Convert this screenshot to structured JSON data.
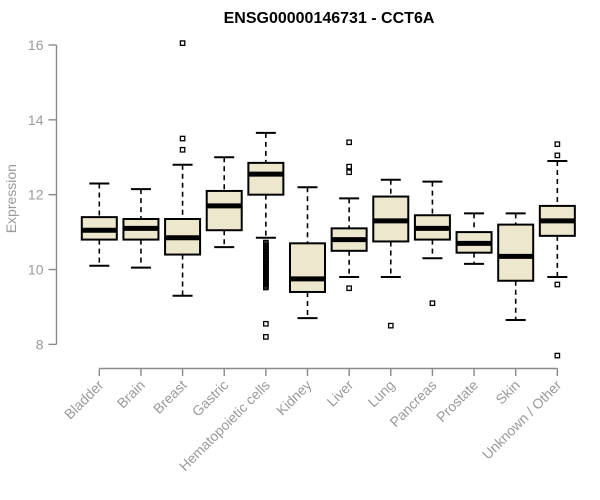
{
  "chart_data": {
    "type": "boxplot",
    "title": "ENSG00000146731 - CCT6A",
    "ylabel": "Expression",
    "xlabel": "",
    "ylim": [
      8,
      16
    ],
    "yticks": [
      8,
      10,
      12,
      14,
      16
    ],
    "grid": false,
    "legend": "none",
    "categories": [
      "Bladder",
      "Brain",
      "Breast",
      "Gastric",
      "Hematopoietic cells",
      "Kidney",
      "Liver",
      "Lung",
      "Pancreas",
      "Prostate",
      "Skin",
      "Unknown / Other"
    ],
    "series": [
      {
        "category": "Bladder",
        "whisker_low": 10.1,
        "q1": 10.8,
        "median": 11.05,
        "q3": 11.4,
        "whisker_high": 12.3,
        "outliers": []
      },
      {
        "category": "Brain",
        "whisker_low": 10.05,
        "q1": 10.8,
        "median": 11.1,
        "q3": 11.35,
        "whisker_high": 12.15,
        "outliers": []
      },
      {
        "category": "Breast",
        "whisker_low": 9.3,
        "q1": 10.4,
        "median": 10.85,
        "q3": 11.35,
        "whisker_high": 12.8,
        "outliers": [
          16.05,
          13.5,
          13.2
        ]
      },
      {
        "category": "Gastric",
        "whisker_low": 10.6,
        "q1": 11.05,
        "median": 11.7,
        "q3": 12.1,
        "whisker_high": 13.0,
        "outliers": []
      },
      {
        "category": "Hematopoietic cells",
        "whisker_low": 10.85,
        "q1": 12.0,
        "median": 12.55,
        "q3": 12.85,
        "whisker_high": 13.65,
        "outliers": [
          10.72,
          10.68,
          10.64,
          10.6,
          10.56,
          10.52,
          10.48,
          10.44,
          10.4,
          10.36,
          10.32,
          10.28,
          10.24,
          10.2,
          10.16,
          10.12,
          10.08,
          10.04,
          10.0,
          9.96,
          9.92,
          9.88,
          9.84,
          9.8,
          9.76,
          9.72,
          9.68,
          9.64,
          9.6,
          9.56,
          9.52,
          8.55,
          8.2
        ]
      },
      {
        "category": "Kidney",
        "whisker_low": 8.7,
        "q1": 9.4,
        "median": 9.75,
        "q3": 10.7,
        "whisker_high": 12.2,
        "outliers": []
      },
      {
        "category": "Liver",
        "whisker_low": 9.8,
        "q1": 10.5,
        "median": 10.8,
        "q3": 11.1,
        "whisker_high": 11.9,
        "outliers": [
          13.4,
          12.75,
          12.6,
          9.5
        ]
      },
      {
        "category": "Lung",
        "whisker_low": 9.8,
        "q1": 10.75,
        "median": 11.3,
        "q3": 11.95,
        "whisker_high": 12.4,
        "outliers": [
          8.5
        ]
      },
      {
        "category": "Pancreas",
        "whisker_low": 10.3,
        "q1": 10.8,
        "median": 11.1,
        "q3": 11.45,
        "whisker_high": 12.35,
        "outliers": [
          9.1
        ]
      },
      {
        "category": "Prostate",
        "whisker_low": 10.15,
        "q1": 10.45,
        "median": 10.7,
        "q3": 11.0,
        "whisker_high": 11.5,
        "outliers": []
      },
      {
        "category": "Skin",
        "whisker_low": 8.65,
        "q1": 9.7,
        "median": 10.35,
        "q3": 11.2,
        "whisker_high": 11.5,
        "outliers": []
      },
      {
        "category": "Unknown / Other",
        "whisker_low": 9.8,
        "q1": 10.9,
        "median": 11.3,
        "q3": 11.7,
        "whisker_high": 12.9,
        "outliers": [
          13.35,
          13.05,
          9.6,
          7.7
        ]
      }
    ],
    "colors": {
      "box_fill": "#EDE8CD",
      "box_border": "#000000",
      "median": "#000000",
      "whisker": "#000000",
      "axis": "#8a8a8a",
      "label_text": "#9a9a9a",
      "title": "#000000",
      "background": "#ffffff"
    }
  }
}
